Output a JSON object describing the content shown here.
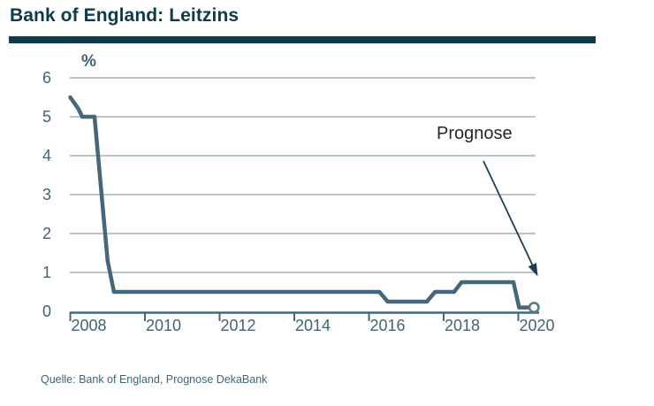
{
  "header": {
    "title": "Bank of England: Leitzins"
  },
  "footer": {
    "source": "Quelle: Bank of England, Prognose DekaBank"
  },
  "colors": {
    "brand": "#0e3b4c",
    "line": "#44687a",
    "grid": "#8ba4ae",
    "axis": "#44687a",
    "tick_label": "#3e6473",
    "annotation_text": "#262626",
    "arrow": "#1e3f4f",
    "marker_stroke": "#587a87"
  },
  "chart_data": {
    "type": "line",
    "title": "Bank of England: Leitzins",
    "ylabel": "%",
    "annotation": "Prognose",
    "xticks": [
      2008,
      2010,
      2012,
      2014,
      2016,
      2018,
      2020
    ],
    "yticks": [
      0,
      1,
      2,
      3,
      4,
      5,
      6
    ],
    "xlim": [
      2008,
      2020.6
    ],
    "ylim": [
      0,
      6
    ],
    "grid": "horizontal",
    "legend": "none",
    "series": [
      {
        "name": "Bank of England Leitzins",
        "points": [
          [
            2008.0,
            5.5
          ],
          [
            2008.22,
            5.2
          ],
          [
            2008.32,
            5.0
          ],
          [
            2008.65,
            5.0
          ],
          [
            2009.0,
            1.3
          ],
          [
            2009.17,
            0.5
          ],
          [
            2016.28,
            0.5
          ],
          [
            2016.5,
            0.25
          ],
          [
            2017.55,
            0.25
          ],
          [
            2017.77,
            0.5
          ],
          [
            2018.28,
            0.5
          ],
          [
            2018.48,
            0.75
          ],
          [
            2019.87,
            0.75
          ],
          [
            2020.02,
            0.1
          ],
          [
            2020.35,
            0.1
          ]
        ]
      }
    ],
    "forecast_point": {
      "x": 2020.42,
      "y": 0.1
    }
  }
}
